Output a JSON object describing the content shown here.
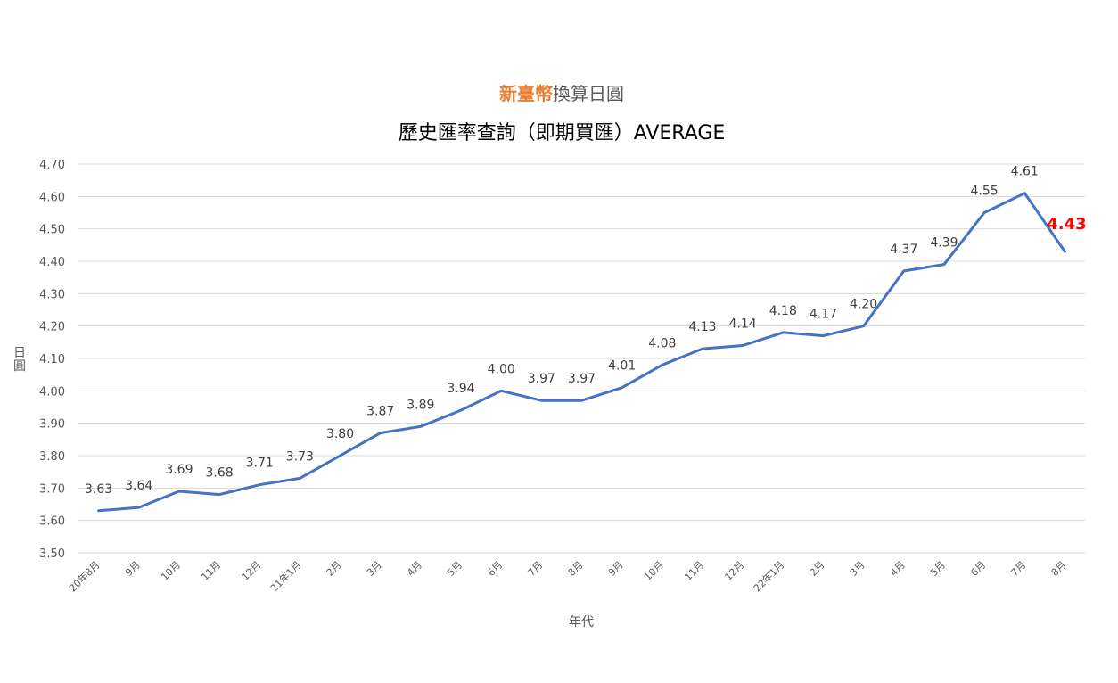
{
  "chart_data": {
    "type": "line",
    "title": {
      "highlight": "新臺幣",
      "rest": "換算日圓",
      "line2": "歷史匯率查詢（即期買匯）AVERAGE"
    },
    "xlabel": "年代",
    "ylabel": "日圓",
    "ylim": [
      3.5,
      4.7
    ],
    "yticks": [
      "3.50",
      "3.60",
      "3.70",
      "3.80",
      "3.90",
      "4.00",
      "4.10",
      "4.20",
      "4.30",
      "4.40",
      "4.50",
      "4.60",
      "4.70"
    ],
    "grid": true,
    "legend": "none",
    "categories": [
      "20年8月",
      "9月",
      "10月",
      "11月",
      "12月",
      "21年1月",
      "2月",
      "3月",
      "4月",
      "5月",
      "6月",
      "7月",
      "8月",
      "9月",
      "10月",
      "11月",
      "12月",
      "22年1月",
      "2月",
      "3月",
      "4月",
      "5月",
      "6月",
      "7月",
      "8月"
    ],
    "values": [
      3.63,
      3.64,
      3.69,
      3.68,
      3.71,
      3.73,
      3.8,
      3.87,
      3.89,
      3.94,
      4.0,
      3.97,
      3.97,
      4.01,
      4.08,
      4.13,
      4.14,
      4.18,
      4.17,
      4.2,
      4.37,
      4.39,
      4.55,
      4.61,
      4.43
    ],
    "labels": [
      "3.63",
      "3.64",
      "3.69",
      "3.68",
      "3.71",
      "3.73",
      "3.80",
      "3.87",
      "3.89",
      "3.94",
      "4.00",
      "3.97",
      "3.97",
      "4.01",
      "4.08",
      "4.13",
      "4.14",
      "4.18",
      "4.17",
      "4.20",
      "4.37",
      "4.39",
      "4.55",
      "4.61",
      "4.43"
    ]
  },
  "colors": {
    "line": "#4472c4",
    "title_highlight": "#ed7d31",
    "last_label": "#ff0000",
    "grid": "#d9d9d9"
  }
}
